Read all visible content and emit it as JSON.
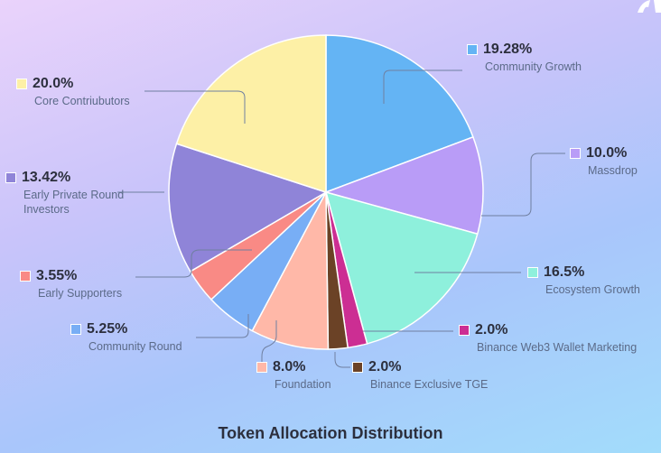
{
  "chart_data": {
    "type": "pie",
    "title": "Token Allocation Distribution",
    "slices": [
      {
        "label": "Community Growth",
        "value": 19.28,
        "display": "19.28%",
        "color": "#64b4f4"
      },
      {
        "label": "Massdrop",
        "value": 10.0,
        "display": "10.0%",
        "color": "#b99cf7"
      },
      {
        "label": "Ecosystem Growth",
        "value": 16.5,
        "display": "16.5%",
        "color": "#8ef0dc"
      },
      {
        "label": "Binance Web3 Wallet Marketing",
        "value": 2.0,
        "display": "2.0%",
        "color": "#cc2e93"
      },
      {
        "label": "Binance Exclusive TGE",
        "value": 2.0,
        "display": "2.0%",
        "color": "#6b4226"
      },
      {
        "label": "Foundation",
        "value": 8.0,
        "display": "8.0%",
        "color": "#ffb8a8"
      },
      {
        "label": "Community Round",
        "value": 5.25,
        "display": "5.25%",
        "color": "#78aef5"
      },
      {
        "label": "Early Supporters",
        "value": 3.55,
        "display": "3.55%",
        "color": "#f98a85"
      },
      {
        "label": "Early Private Round Investors",
        "value": 13.42,
        "display": "13.42%",
        "color": "#8f84d8"
      },
      {
        "label": "Core Contriubutors",
        "value": 20.0,
        "display": "20.0%",
        "color": "#fdf0a6"
      }
    ],
    "legend": "callouts"
  }
}
